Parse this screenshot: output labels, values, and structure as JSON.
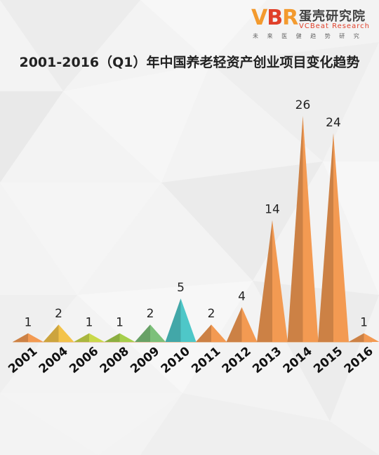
{
  "brand": {
    "mark_left": "V",
    "mark_mid": "B",
    "mark_right": "R",
    "name": "蛋壳研究院",
    "name_en": "VCBeat Research",
    "tagline": "未 来 医 健 趋 势 研 究"
  },
  "chart_data": {
    "type": "bar",
    "title": "2001-2016（Q1）年中国养老轻资产创业项目变化趋势",
    "categories": [
      "2001",
      "2004",
      "2006",
      "2008",
      "2009",
      "2010",
      "2011",
      "2012",
      "2013",
      "2014",
      "2015",
      "2016"
    ],
    "values": [
      1,
      2,
      1,
      1,
      2,
      5,
      2,
      4,
      14,
      26,
      24,
      1
    ],
    "ylim": [
      0,
      26
    ],
    "colors": [
      "#f39a52",
      "#f3c34a",
      "#c9d94a",
      "#a6cf4c",
      "#7cc07a",
      "#4ec7c8",
      "#f39a52",
      "#f39a52",
      "#f39a52",
      "#f39a52",
      "#f39a52",
      "#f39a52"
    ],
    "grid": false,
    "legend": "none"
  }
}
